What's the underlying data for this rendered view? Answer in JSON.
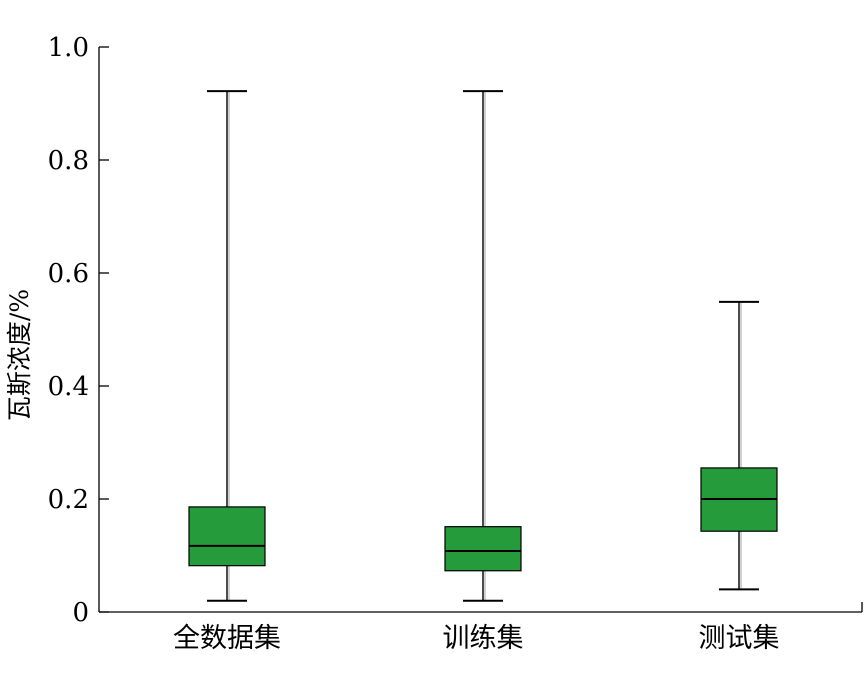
{
  "chart_data": {
    "type": "box",
    "ylabel": "瓦斯浓度/%",
    "ylim": [
      0,
      1.0
    ],
    "yticks": [
      "0",
      "0.2",
      "0.4",
      "0.6",
      "0.8",
      "1.0"
    ],
    "categories": [
      "全数据集",
      "训练集",
      "测试集"
    ],
    "box_color": "#259b3b",
    "series": [
      {
        "category": "全数据集",
        "min": 0.02,
        "q1": 0.082,
        "median": 0.117,
        "q3": 0.186,
        "max": 0.922
      },
      {
        "category": "训练集",
        "min": 0.02,
        "q1": 0.073,
        "median": 0.108,
        "q3": 0.151,
        "max": 0.922
      },
      {
        "category": "测试集",
        "min": 0.04,
        "q1": 0.143,
        "median": 0.2,
        "q3": 0.255,
        "max": 0.549
      }
    ]
  }
}
